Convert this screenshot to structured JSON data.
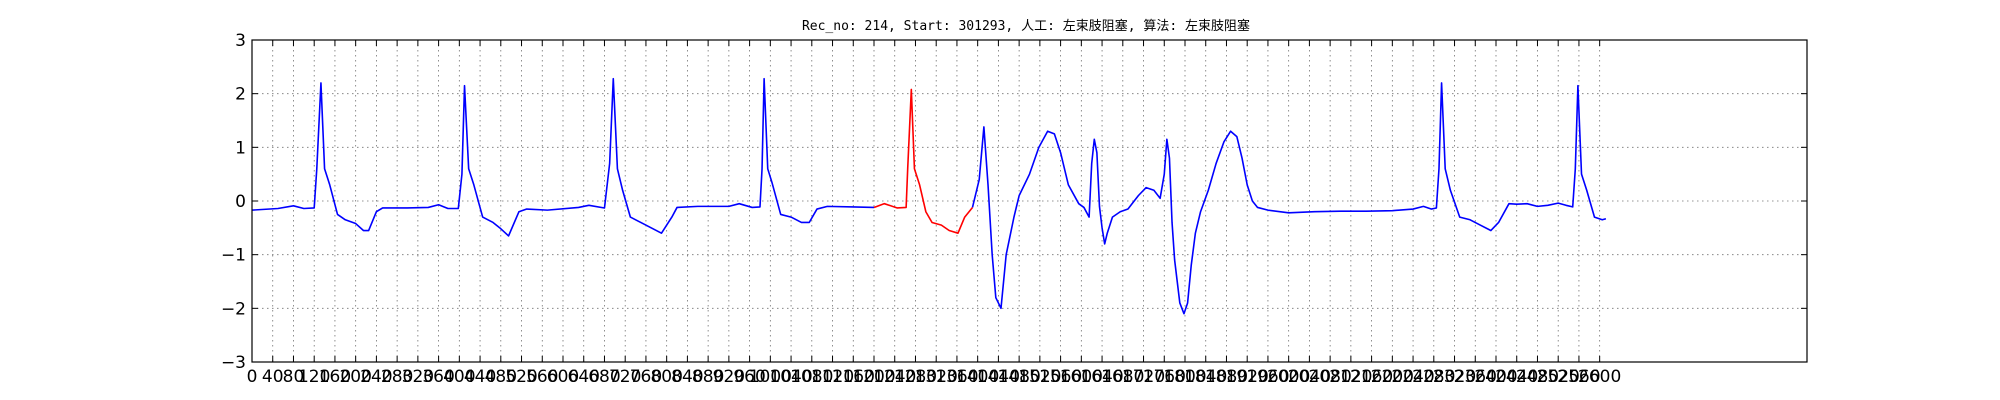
{
  "chart_data": {
    "type": "line",
    "title": "Rec_no: 214, Start: 301293, 人工: 左束肢阻塞, 算法: 左束肢阻塞",
    "xlabel": "",
    "ylabel": "",
    "xlim": [
      0,
      3000
    ],
    "ylim": [
      -3,
      3
    ],
    "grid": true,
    "x_ticks": [
      0,
      40,
      80,
      120,
      160,
      200,
      240,
      280,
      320,
      360,
      400,
      440,
      480,
      520,
      560,
      600,
      640,
      680,
      720,
      760,
      800,
      840,
      880,
      920,
      960,
      1000,
      1040,
      1080,
      1120,
      1160,
      1200,
      1240,
      1280,
      1320,
      1360,
      1400,
      1440,
      1480,
      1520,
      1560,
      1600,
      1640,
      1680,
      1720,
      1760,
      1800,
      1840,
      1880,
      1920,
      1960,
      2000,
      2040,
      2080,
      2120,
      2160,
      2200,
      2240,
      2280,
      2320,
      2360,
      2400,
      2440,
      2480,
      2520,
      2560,
      2600
    ],
    "y_ticks": [
      3,
      2,
      1,
      0,
      -1,
      -2,
      -3
    ],
    "y_tick_labels": [
      "3",
      "2",
      "1",
      "0",
      "−1",
      "−2",
      "−3"
    ],
    "series": [
      {
        "color": "#0000ff",
        "points": [
          [
            0,
            -0.17
          ],
          [
            50,
            -0.14
          ],
          [
            80,
            -0.09
          ],
          [
            100,
            -0.14
          ],
          [
            120,
            -0.13
          ],
          [
            125,
            0.6
          ],
          [
            133,
            2.2
          ],
          [
            140,
            0.6
          ],
          [
            150,
            0.3
          ],
          [
            165,
            -0.25
          ],
          [
            180,
            -0.35
          ],
          [
            200,
            -0.42
          ],
          [
            215,
            -0.55
          ],
          [
            225,
            -0.55
          ],
          [
            240,
            -0.2
          ],
          [
            252,
            -0.13
          ],
          [
            300,
            -0.13
          ],
          [
            340,
            -0.12
          ],
          [
            360,
            -0.07
          ],
          [
            378,
            -0.14
          ],
          [
            398,
            -0.14
          ],
          [
            405,
            0.5
          ],
          [
            410,
            2.15
          ],
          [
            418,
            0.6
          ],
          [
            428,
            0.3
          ],
          [
            445,
            -0.3
          ],
          [
            465,
            -0.4
          ],
          [
            478,
            -0.5
          ],
          [
            495,
            -0.65
          ],
          [
            515,
            -0.2
          ],
          [
            530,
            -0.15
          ],
          [
            570,
            -0.17
          ],
          [
            630,
            -0.12
          ],
          [
            650,
            -0.08
          ],
          [
            680,
            -0.13
          ],
          [
            690,
            0.7
          ],
          [
            697,
            2.28
          ],
          [
            705,
            0.6
          ],
          [
            715,
            0.2
          ],
          [
            730,
            -0.3
          ],
          [
            750,
            -0.4
          ],
          [
            770,
            -0.5
          ],
          [
            790,
            -0.6
          ],
          [
            810,
            -0.3
          ],
          [
            820,
            -0.12
          ],
          [
            860,
            -0.1
          ],
          [
            920,
            -0.1
          ],
          [
            940,
            -0.05
          ],
          [
            965,
            -0.12
          ],
          [
            980,
            -0.11
          ],
          [
            984,
            0.6
          ],
          [
            988,
            2.28
          ],
          [
            995,
            0.6
          ],
          [
            1003,
            0.35
          ],
          [
            1020,
            -0.25
          ],
          [
            1040,
            -0.3
          ],
          [
            1060,
            -0.4
          ],
          [
            1075,
            -0.4
          ],
          [
            1090,
            -0.15
          ],
          [
            1110,
            -0.1
          ],
          [
            1160,
            -0.11
          ],
          [
            1200,
            -0.12
          ]
        ]
      },
      {
        "color": "#ff0000",
        "points": [
          [
            1200,
            -0.12
          ],
          [
            1220,
            -0.05
          ],
          [
            1245,
            -0.13
          ],
          [
            1262,
            -0.12
          ],
          [
            1265,
            0.6
          ],
          [
            1272,
            2.08
          ],
          [
            1278,
            0.6
          ],
          [
            1288,
            0.3
          ],
          [
            1300,
            -0.2
          ],
          [
            1312,
            -0.4
          ],
          [
            1330,
            -0.45
          ],
          [
            1345,
            -0.55
          ],
          [
            1362,
            -0.6
          ],
          [
            1375,
            -0.3
          ],
          [
            1390,
            -0.12
          ]
        ]
      },
      {
        "color": "#0000ff",
        "points": [
          [
            1390,
            -0.12
          ],
          [
            1403,
            0.4
          ],
          [
            1412,
            1.38
          ],
          [
            1420,
            0.3
          ],
          [
            1428,
            -1.0
          ],
          [
            1435,
            -1.8
          ],
          [
            1445,
            -2.0
          ],
          [
            1455,
            -1.0
          ],
          [
            1470,
            -0.3
          ],
          [
            1480,
            0.1
          ],
          [
            1500,
            0.5
          ],
          [
            1518,
            1.0
          ],
          [
            1535,
            1.3
          ],
          [
            1548,
            1.25
          ],
          [
            1560,
            0.9
          ],
          [
            1575,
            0.3
          ],
          [
            1595,
            -0.05
          ],
          [
            1605,
            -0.12
          ],
          [
            1615,
            -0.3
          ],
          [
            1620,
            0.7
          ],
          [
            1625,
            1.15
          ],
          [
            1630,
            0.9
          ],
          [
            1635,
            -0.1
          ],
          [
            1640,
            -0.5
          ],
          [
            1645,
            -0.8
          ],
          [
            1650,
            -0.6
          ],
          [
            1660,
            -0.3
          ],
          [
            1675,
            -0.2
          ],
          [
            1690,
            -0.15
          ],
          [
            1710,
            0.1
          ],
          [
            1725,
            0.25
          ],
          [
            1740,
            0.2
          ],
          [
            1752,
            0.05
          ],
          [
            1760,
            0.5
          ],
          [
            1765,
            1.15
          ],
          [
            1770,
            0.8
          ],
          [
            1775,
            -0.4
          ],
          [
            1780,
            -1.1
          ],
          [
            1785,
            -1.5
          ],
          [
            1790,
            -1.9
          ],
          [
            1798,
            -2.1
          ],
          [
            1805,
            -1.9
          ],
          [
            1812,
            -1.2
          ],
          [
            1820,
            -0.6
          ],
          [
            1830,
            -0.2
          ],
          [
            1845,
            0.2
          ],
          [
            1860,
            0.7
          ],
          [
            1875,
            1.1
          ],
          [
            1888,
            1.3
          ],
          [
            1900,
            1.2
          ],
          [
            1910,
            0.8
          ],
          [
            1920,
            0.3
          ],
          [
            1930,
            0.0
          ],
          [
            1940,
            -0.12
          ],
          [
            1960,
            -0.17
          ],
          [
            2000,
            -0.22
          ],
          [
            2050,
            -0.2
          ],
          [
            2100,
            -0.19
          ],
          [
            2150,
            -0.19
          ],
          [
            2200,
            -0.18
          ],
          [
            2240,
            -0.15
          ],
          [
            2260,
            -0.1
          ],
          [
            2275,
            -0.15
          ],
          [
            2285,
            -0.13
          ],
          [
            2290,
            0.6
          ],
          [
            2295,
            2.2
          ],
          [
            2302,
            0.6
          ],
          [
            2312,
            0.2
          ],
          [
            2330,
            -0.3
          ],
          [
            2350,
            -0.35
          ],
          [
            2370,
            -0.45
          ],
          [
            2390,
            -0.55
          ],
          [
            2405,
            -0.4
          ],
          [
            2425,
            -0.05
          ],
          [
            2440,
            -0.06
          ],
          [
            2460,
            -0.05
          ],
          [
            2480,
            -0.1
          ],
          [
            2500,
            -0.08
          ],
          [
            2520,
            -0.04
          ],
          [
            2535,
            -0.08
          ],
          [
            2548,
            -0.11
          ],
          [
            2553,
            0.6
          ],
          [
            2558,
            2.15
          ],
          [
            2565,
            0.5
          ],
          [
            2575,
            0.2
          ],
          [
            2590,
            -0.3
          ],
          [
            2605,
            -0.35
          ],
          [
            2612,
            -0.33
          ]
        ]
      }
    ]
  }
}
